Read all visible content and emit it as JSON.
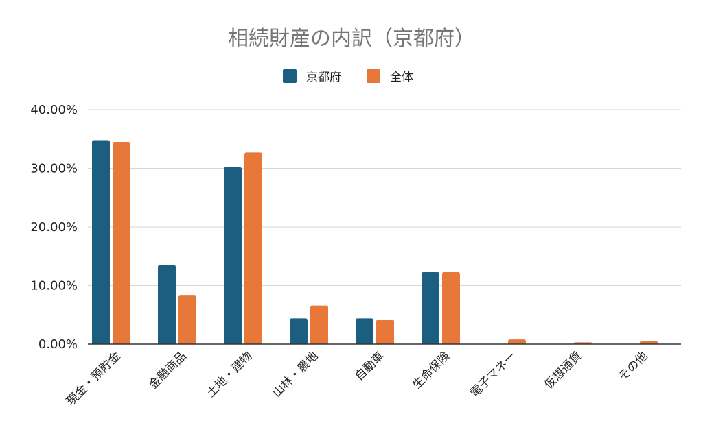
{
  "chart_data": {
    "type": "bar",
    "title": "相続財産の内訳（京都府）",
    "categories": [
      "現金・預貯金",
      "金融商品",
      "土地・建物",
      "山林・農地",
      "自動車",
      "生命保険",
      "電子マネー",
      "仮想通貨",
      "その他"
    ],
    "series": [
      {
        "name": "京都府",
        "color": "#1b5e80",
        "values": [
          34.8,
          13.5,
          30.2,
          4.4,
          4.4,
          12.3,
          0.0,
          0.0,
          0.0
        ]
      },
      {
        "name": "全体",
        "color": "#e8783a",
        "values": [
          34.5,
          8.4,
          32.7,
          6.6,
          4.2,
          12.3,
          0.8,
          0.3,
          0.5
        ]
      }
    ],
    "ylim": [
      0,
      40
    ],
    "yticks": [
      0,
      10,
      20,
      30,
      40
    ],
    "ytick_labels": [
      "0.00%",
      "10.00%",
      "20.00%",
      "30.00%",
      "40.00%"
    ],
    "xlabel": "",
    "ylabel": "",
    "legend_position": "top-center",
    "grid": true
  }
}
